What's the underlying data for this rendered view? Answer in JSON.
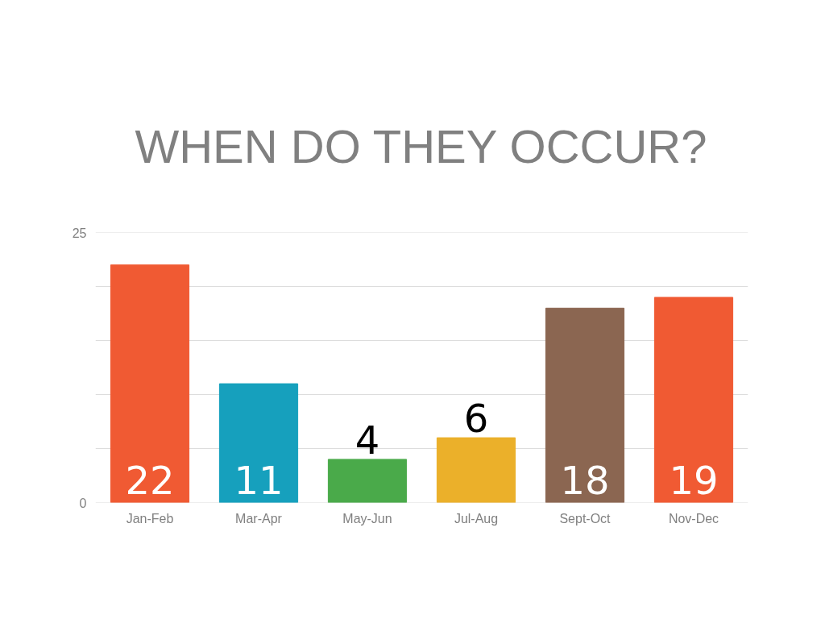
{
  "chart_data": {
    "type": "bar",
    "title": "WHEN DO THEY OCCUR?",
    "categories": [
      "Jan-Feb",
      "Mar-Apr",
      "May-Jun",
      "Jul-Aug",
      "Sept-Oct",
      "Nov-Dec"
    ],
    "values": [
      22,
      11,
      4,
      6,
      18,
      19
    ],
    "colors": [
      "#f05a33",
      "#16a0bd",
      "#4aaa4a",
      "#ebb02a",
      "#8b6651",
      "#f05a33"
    ],
    "ylim": [
      0,
      25
    ],
    "yticks": [
      0,
      {
        "value": 5,
        "label": null
      },
      {
        "value": 10,
        "label": null
      },
      {
        "value": 15,
        "label": null
      },
      {
        "value": 20,
        "label": null
      },
      25
    ],
    "grid": "y",
    "data_labels": true
  }
}
